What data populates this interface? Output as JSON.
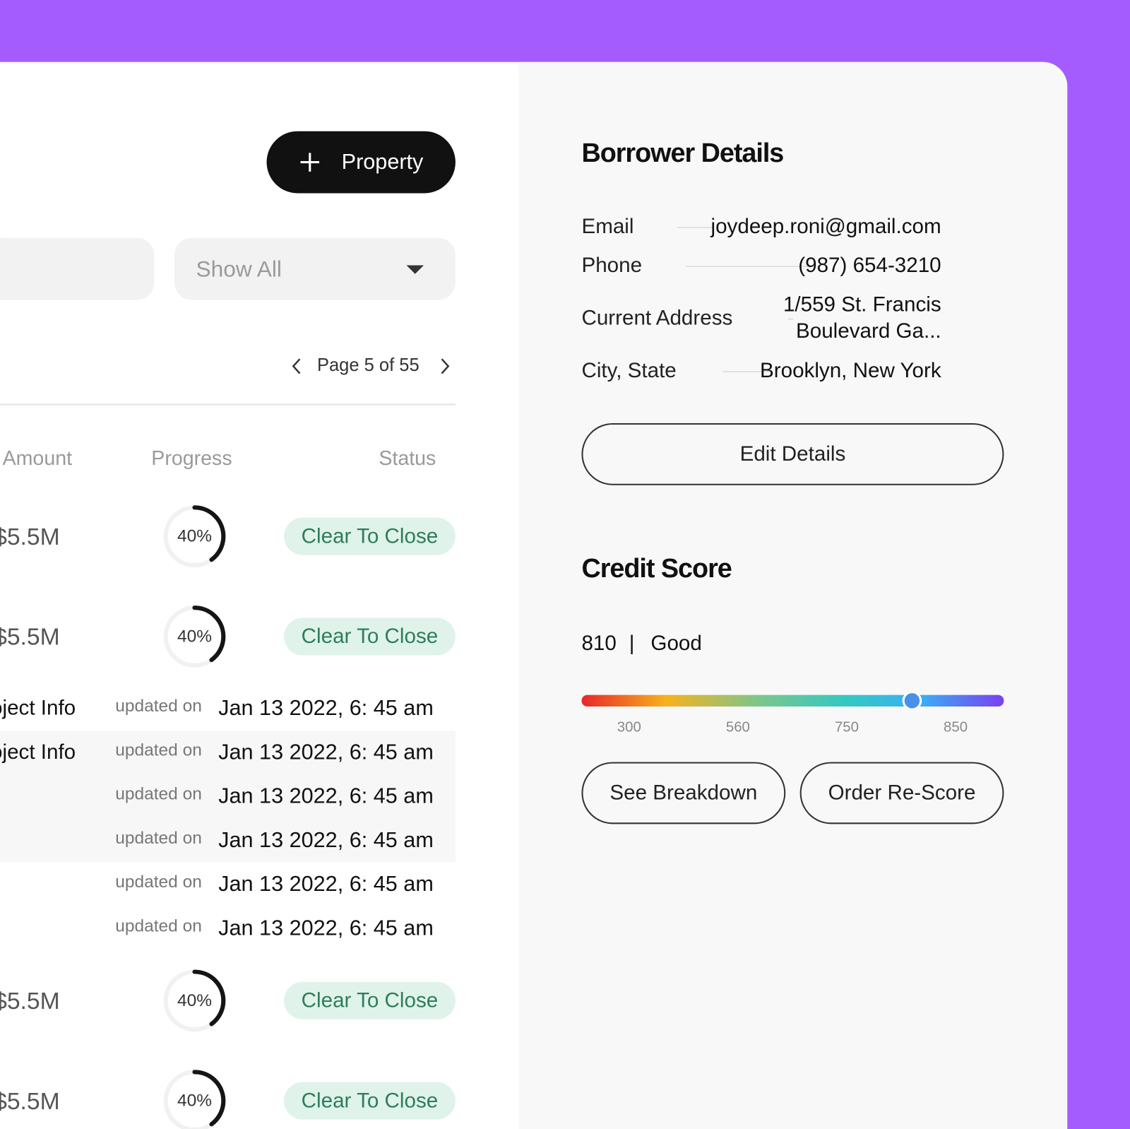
{
  "header": {
    "add_button": "Property",
    "filter": "Show All",
    "pagination": "Page 5 of 55"
  },
  "table": {
    "columns": [
      "Amount",
      "Progress",
      "Status"
    ],
    "loans_top": [
      {
        "amount": "$5.5M",
        "progress": {
          "value": 40,
          "label": "40%"
        },
        "status": "Clear To Close"
      },
      {
        "amount": "$5.5M",
        "progress": {
          "value": 40,
          "label": "40%"
        },
        "status": "Clear To Close"
      }
    ],
    "updates": [
      {
        "item": "Project Info",
        "prefix": "updated on",
        "date": "Jan 13 2022, 6: 45 am"
      },
      {
        "item": "Project Info",
        "prefix": "updated on",
        "date": "Jan 13 2022, 6: 45 am"
      },
      {
        "prefix": "updated on",
        "date": "Jan 13 2022, 6: 45 am"
      },
      {
        "prefix": "updated on",
        "date": "Jan 13 2022, 6: 45 am"
      },
      {
        "prefix": "updated on",
        "date": "Jan 13 2022, 6: 45 am"
      },
      {
        "prefix": "updated on",
        "date": "Jan 13 2022, 6: 45 am"
      }
    ],
    "loans_bottom": [
      {
        "amount": "$5.5M",
        "progress": {
          "value": 40,
          "label": "40%"
        },
        "status": "Clear To Close"
      },
      {
        "amount": "$5.5M",
        "progress": {
          "value": 40,
          "label": "40%"
        },
        "status": "Clear To Close"
      }
    ]
  },
  "borrower": {
    "title": "Borrower Details",
    "fields": [
      {
        "label": "Email",
        "value": "joydeep.roni@gmail.com"
      },
      {
        "label": "Phone",
        "value": "(987) 654-3210"
      },
      {
        "label": "Current Address",
        "value": [
          "1/559 St. Francis",
          "Boulevard Ga..."
        ]
      },
      {
        "label": "City, State",
        "value": "Brooklyn, New York"
      }
    ],
    "edit_button": "Edit Details"
  },
  "credit_score": {
    "title": "Credit Score",
    "score": 810,
    "separator": "|",
    "rating": "Good",
    "scale": [
      300,
      560,
      750,
      850
    ],
    "actions": [
      "See Breakdown",
      "Order Re-Score"
    ]
  }
}
